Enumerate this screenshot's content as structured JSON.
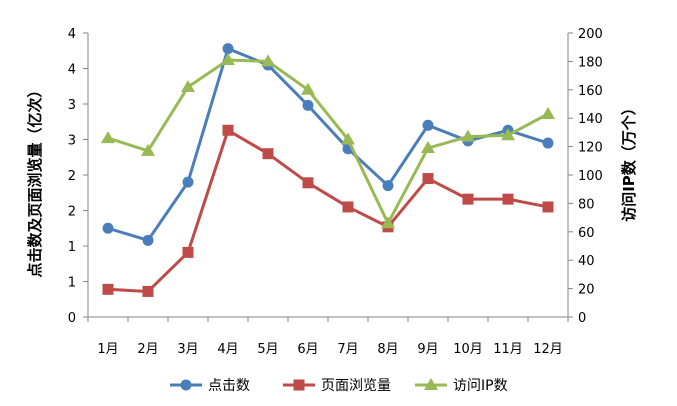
{
  "chart_data": {
    "type": "line",
    "categories": [
      "1月",
      "2月",
      "3月",
      "4月",
      "5月",
      "6月",
      "7月",
      "8月",
      "9月",
      "10月",
      "11月",
      "12月"
    ],
    "y_left": {
      "label": "点击数及页面浏览量（亿次）",
      "ylim": [
        0,
        4
      ],
      "ticks": [
        0,
        0.5,
        1,
        1.5,
        2,
        2.5,
        3,
        3.5,
        4
      ],
      "tick_labels": [
        "0",
        "1",
        "1",
        "2",
        "2",
        "3",
        "3",
        "4",
        "4"
      ]
    },
    "y_right": {
      "label": "访问IP数（万个）",
      "ylim": [
        0,
        200
      ],
      "ticks": [
        0,
        20,
        40,
        60,
        80,
        100,
        120,
        140,
        160,
        180,
        200
      ],
      "tick_labels": [
        "0",
        "20",
        "40",
        "60",
        "80",
        "100",
        "120",
        "140",
        "160",
        "180",
        "200"
      ]
    },
    "series": [
      {
        "name": "点击数",
        "axis": "left",
        "color": "#4A7EBB",
        "marker": "circle",
        "values": [
          1.25,
          1.08,
          1.9,
          3.78,
          3.55,
          2.98,
          2.37,
          1.85,
          2.7,
          2.48,
          2.63,
          2.45
        ]
      },
      {
        "name": "页面浏览量",
        "axis": "left",
        "color": "#BE4B48",
        "marker": "square",
        "values": [
          0.39,
          0.36,
          0.91,
          2.63,
          2.3,
          1.89,
          1.55,
          1.27,
          1.95,
          1.66,
          1.66,
          1.55
        ]
      },
      {
        "name": "访问IP数",
        "axis": "right",
        "color": "#98B954",
        "marker": "triangle",
        "values": [
          126,
          117,
          162,
          181,
          180,
          160,
          125,
          66,
          119,
          127,
          128,
          143
        ]
      }
    ],
    "grid": false,
    "legend_position": "bottom"
  }
}
